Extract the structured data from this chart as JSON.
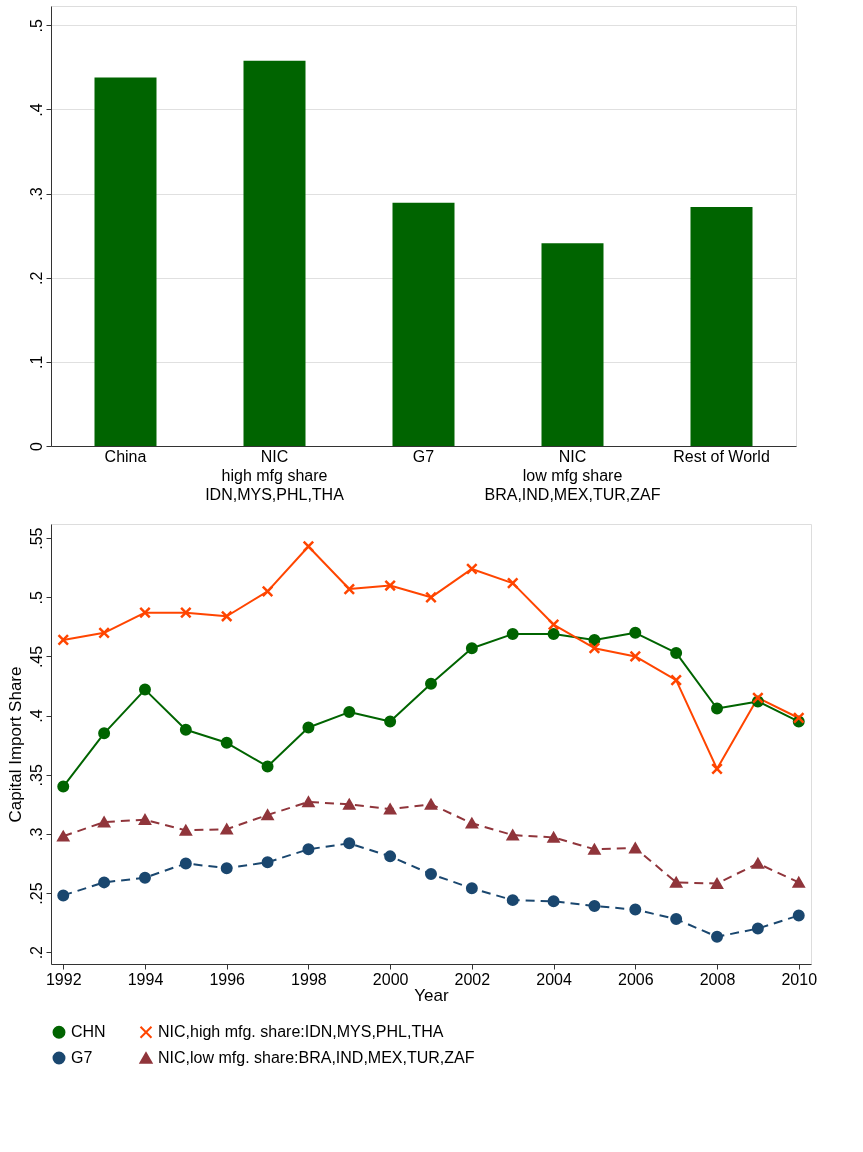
{
  "chart_data": [
    {
      "type": "bar",
      "categories": [
        "China",
        "NIC\nhigh mfg share\nIDN,MYS,PHL,THA",
        "G7",
        "NIC\nlow mfg share\nBRA,IND,MEX,TUR,ZAF",
        "Rest of World"
      ],
      "values": [
        0.438,
        0.458,
        0.289,
        0.241,
        0.284
      ],
      "color": "#006400",
      "ylim": [
        0,
        0.523
      ],
      "yticks": [
        {
          "value": 0,
          "label": "0"
        },
        {
          "value": 0.1,
          "label": ".1"
        },
        {
          "value": 0.2,
          "label": ".2"
        },
        {
          "value": 0.3,
          "label": ".3"
        },
        {
          "value": 0.4,
          "label": ".4"
        },
        {
          "value": 0.5,
          "label": ".5"
        }
      ],
      "grid": "y"
    },
    {
      "type": "line",
      "xlabel": "Year",
      "ylabel": "Capital Import Share",
      "x": [
        1992,
        1993,
        1994,
        1995,
        1996,
        1997,
        1998,
        1999,
        2000,
        2001,
        2002,
        2003,
        2004,
        2005,
        2006,
        2007,
        2008,
        2009,
        2010
      ],
      "series": [
        {
          "name": "CHN",
          "color": "#006400",
          "marker": "circle",
          "line_style": "solid",
          "values": [
            0.34,
            0.385,
            0.422,
            0.388,
            0.377,
            0.357,
            0.39,
            0.403,
            0.395,
            0.427,
            0.457,
            0.469,
            0.469,
            0.464,
            0.47,
            0.453,
            0.406,
            0.412,
            0.395
          ]
        },
        {
          "name": "NIC,high mfg. share:IDN,MYS,PHL,THA",
          "color": "#ff4500",
          "marker": "cross",
          "line_style": "solid",
          "values": [
            0.464,
            0.47,
            0.487,
            0.487,
            0.484,
            0.505,
            0.543,
            0.507,
            0.51,
            0.5,
            0.524,
            0.512,
            0.477,
            0.457,
            0.45,
            0.43,
            0.355,
            0.415,
            0.398
          ]
        },
        {
          "name": "G7",
          "color": "#1a476f",
          "marker": "circle",
          "line_style": "dashed",
          "values": [
            0.248,
            0.259,
            0.263,
            0.275,
            0.271,
            0.276,
            0.287,
            0.292,
            0.281,
            0.266,
            0.254,
            0.244,
            0.243,
            0.239,
            0.236,
            0.228,
            0.213,
            0.22,
            0.231
          ]
        },
        {
          "name": "NIC,low mfg. share:BRA,IND,MEX,TUR,ZAF",
          "color": "#90353b",
          "marker": "triangle",
          "line_style": "dashed",
          "values": [
            0.298,
            0.31,
            0.312,
            0.303,
            0.304,
            0.316,
            0.327,
            0.325,
            0.321,
            0.325,
            0.309,
            0.299,
            0.297,
            0.287,
            0.288,
            0.259,
            0.258,
            0.275,
            0.259
          ]
        }
      ],
      "xlim": [
        1991.7,
        2010.3
      ],
      "xticks": [
        1992,
        1994,
        1996,
        1998,
        2000,
        2002,
        2004,
        2006,
        2008,
        2010
      ],
      "ylim": [
        0.19,
        0.562
      ],
      "yticks": [
        {
          "value": 0.2,
          "label": ".2"
        },
        {
          "value": 0.25,
          "label": ".25"
        },
        {
          "value": 0.3,
          "label": ".3"
        },
        {
          "value": 0.35,
          "label": ".35"
        },
        {
          "value": 0.4,
          "label": ".4"
        },
        {
          "value": 0.45,
          "label": ".45"
        },
        {
          "value": 0.5,
          "label": ".5"
        },
        {
          "value": 0.55,
          "label": ".55"
        }
      ],
      "grid": false,
      "legend": "bottom"
    }
  ]
}
